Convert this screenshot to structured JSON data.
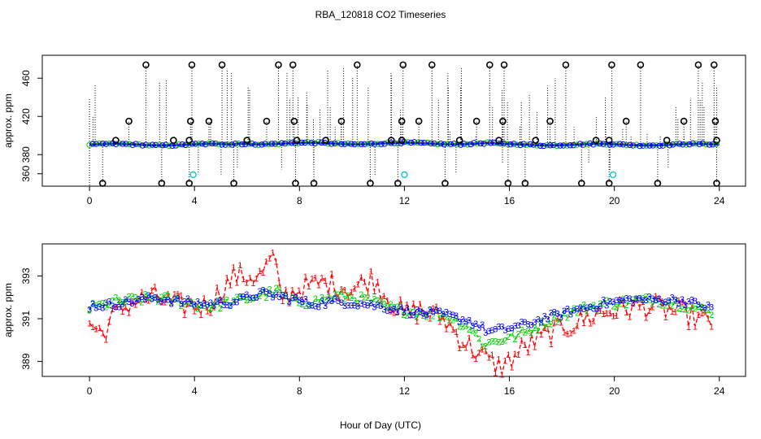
{
  "title": "RBA_120818  CO2 Timeseries",
  "colors": {
    "series1": "#ff0000",
    "series2": "#00cc00",
    "series3": "#0000ff",
    "raw": "#000000",
    "flag": "#00cccc"
  },
  "chart_data": [
    {
      "type": "scatter",
      "name": "top",
      "ylabel": "approx. ppm",
      "xlabel": "",
      "xlim": [
        -1.8,
        25
      ],
      "ylim": [
        347,
        484
      ],
      "x_ticks": [
        0,
        4,
        8,
        12,
        16,
        20,
        24
      ],
      "y_ticks": [
        360,
        380,
        420,
        460
      ],
      "baseline": 390.5,
      "high_outliers": [
        2.15,
        3.9,
        5.05,
        7.2,
        7.75,
        10.2,
        11.95,
        13.05,
        15.25,
        15.8,
        18.15,
        19.9,
        21.0,
        23.2,
        23.8
      ],
      "mid_outliers": [
        1.5,
        3.85,
        4.55,
        6.75,
        7.8,
        9.6,
        11.9,
        12.55,
        14.75,
        15.75,
        17.55,
        20.45,
        22.65,
        23.85
      ],
      "low_outliers": [
        0.5,
        2.75,
        3.8,
        5.5,
        7.85,
        8.55,
        10.7,
        11.75,
        13.55,
        15.95,
        16.6,
        18.75,
        19.8,
        21.65,
        23.9
      ],
      "cyan_points": [
        [
          3.95,
          359
        ],
        [
          12.0,
          359
        ],
        [
          19.95,
          359
        ]
      ]
    },
    {
      "type": "scatter",
      "name": "bottom",
      "ylabel": "approx. ppm",
      "xlabel": "Hour of Day (UTC)",
      "xlim": [
        -1.8,
        25
      ],
      "ylim": [
        388.3,
        394.5
      ],
      "x_ticks": [
        0,
        4,
        8,
        12,
        16,
        20,
        24
      ],
      "y_ticks": [
        389,
        391,
        393
      ],
      "series": [
        {
          "name": "1",
          "knots": [
            [
              0.0,
              390.8
            ],
            [
              0.5,
              390.3
            ],
            [
              1.0,
              391.3
            ],
            [
              1.8,
              391.9
            ],
            [
              2.5,
              392.0
            ],
            [
              3.5,
              391.6
            ],
            [
              4.5,
              391.6
            ],
            [
              5.5,
              393.0
            ],
            [
              6.5,
              393.0
            ],
            [
              7.0,
              393.9
            ],
            [
              7.3,
              392.0
            ],
            [
              8.0,
              392.4
            ],
            [
              9.0,
              392.7
            ],
            [
              10.0,
              392.4
            ],
            [
              10.8,
              392.9
            ],
            [
              11.5,
              391.8
            ],
            [
              12.0,
              391.2
            ],
            [
              12.6,
              391.4
            ],
            [
              13.5,
              391.0
            ],
            [
              14.2,
              390.0
            ],
            [
              15.0,
              389.2
            ],
            [
              15.7,
              388.7
            ],
            [
              16.5,
              389.6
            ],
            [
              17.5,
              390.3
            ],
            [
              18.5,
              390.8
            ],
            [
              19.5,
              391.3
            ],
            [
              20.5,
              391.5
            ],
            [
              21.3,
              391.6
            ],
            [
              22.5,
              391.3
            ],
            [
              23.7,
              390.8
            ]
          ]
        },
        {
          "name": "2",
          "knots": [
            [
              0.0,
              391.5
            ],
            [
              1.0,
              391.8
            ],
            [
              2.5,
              392.0
            ],
            [
              3.5,
              391.8
            ],
            [
              4.5,
              391.6
            ],
            [
              5.5,
              391.8
            ],
            [
              6.5,
              392.1
            ],
            [
              7.2,
              392.3
            ],
            [
              7.6,
              391.8
            ],
            [
              8.5,
              391.8
            ],
            [
              9.5,
              392.1
            ],
            [
              10.5,
              391.9
            ],
            [
              11.5,
              391.5
            ],
            [
              12.5,
              391.3
            ],
            [
              13.5,
              391.2
            ],
            [
              14.5,
              390.6
            ],
            [
              15.0,
              389.8
            ],
            [
              15.6,
              390.0
            ],
            [
              16.5,
              390.3
            ],
            [
              17.5,
              390.9
            ],
            [
              18.5,
              391.4
            ],
            [
              19.5,
              391.7
            ],
            [
              20.5,
              391.8
            ],
            [
              21.5,
              391.9
            ],
            [
              22.5,
              391.7
            ],
            [
              23.7,
              391.3
            ]
          ]
        },
        {
          "name": "3",
          "knots": [
            [
              0.0,
              391.6
            ],
            [
              1.0,
              391.7
            ],
            [
              2.5,
              392.0
            ],
            [
              3.5,
              391.8
            ],
            [
              4.5,
              391.7
            ],
            [
              5.5,
              391.8
            ],
            [
              6.5,
              392.2
            ],
            [
              7.5,
              392.0
            ],
            [
              8.5,
              391.7
            ],
            [
              9.5,
              391.8
            ],
            [
              10.5,
              391.7
            ],
            [
              11.5,
              391.5
            ],
            [
              12.5,
              391.3
            ],
            [
              13.5,
              391.2
            ],
            [
              14.5,
              390.9
            ],
            [
              15.2,
              390.4
            ],
            [
              15.7,
              390.5
            ],
            [
              16.5,
              390.7
            ],
            [
              17.5,
              391.1
            ],
            [
              18.5,
              391.4
            ],
            [
              19.5,
              391.7
            ],
            [
              20.5,
              391.9
            ],
            [
              21.5,
              391.9
            ],
            [
              22.5,
              391.9
            ],
            [
              23.7,
              391.5
            ]
          ]
        }
      ]
    }
  ]
}
